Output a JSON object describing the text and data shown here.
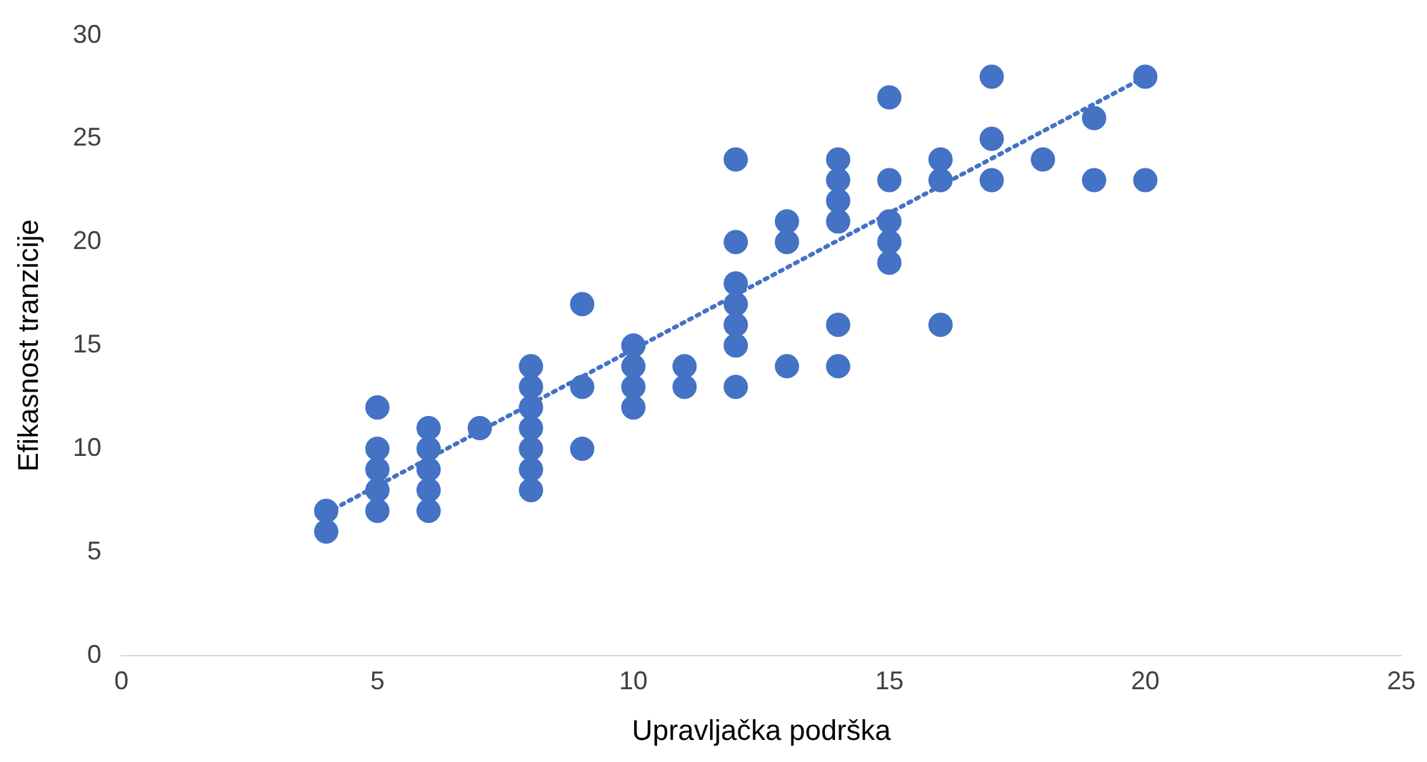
{
  "chart_data": {
    "type": "scatter",
    "xlabel": "Upravljačka podrška",
    "ylabel": "Efikasnost tranzicije",
    "xlim": [
      0,
      25
    ],
    "xticks": [
      0,
      5,
      10,
      15,
      20,
      25
    ],
    "ylim": [
      0,
      30
    ],
    "yticks": [
      0,
      5,
      10,
      15,
      20,
      25,
      30
    ],
    "grid": false,
    "legend": false,
    "marker": "circle",
    "series": [
      {
        "type": "scatter",
        "color": "#4472c4",
        "x": [
          4,
          4,
          5,
          5,
          5,
          5,
          5,
          6,
          6,
          6,
          6,
          6,
          7,
          8,
          8,
          8,
          8,
          8,
          8,
          8,
          9,
          9,
          9,
          10,
          10,
          10,
          10,
          11,
          11,
          12,
          12,
          12,
          12,
          12,
          12,
          12,
          13,
          13,
          13,
          14,
          14,
          14,
          14,
          14,
          14,
          15,
          15,
          15,
          15,
          15,
          16,
          16,
          16,
          17,
          17,
          17,
          18,
          19,
          19,
          20,
          20
        ],
        "values": [
          7,
          6,
          12,
          10,
          9,
          8,
          7,
          11,
          10,
          9,
          8,
          7,
          11,
          14,
          13,
          12,
          11,
          10,
          9,
          8,
          17,
          13,
          10,
          15,
          14,
          13,
          12,
          14,
          13,
          24,
          20,
          18,
          17,
          16,
          15,
          13,
          21,
          20,
          14,
          24,
          23,
          22,
          21,
          16,
          14,
          27,
          23,
          21,
          20,
          19,
          24,
          23,
          16,
          28,
          25,
          23,
          24,
          26,
          23,
          28,
          23
        ]
      },
      {
        "type": "line",
        "color": "#4472c4",
        "line_style": "dotted",
        "marker": "none",
        "x": [
          4,
          20
        ],
        "values": [
          6.9,
          28
        ]
      }
    ]
  }
}
